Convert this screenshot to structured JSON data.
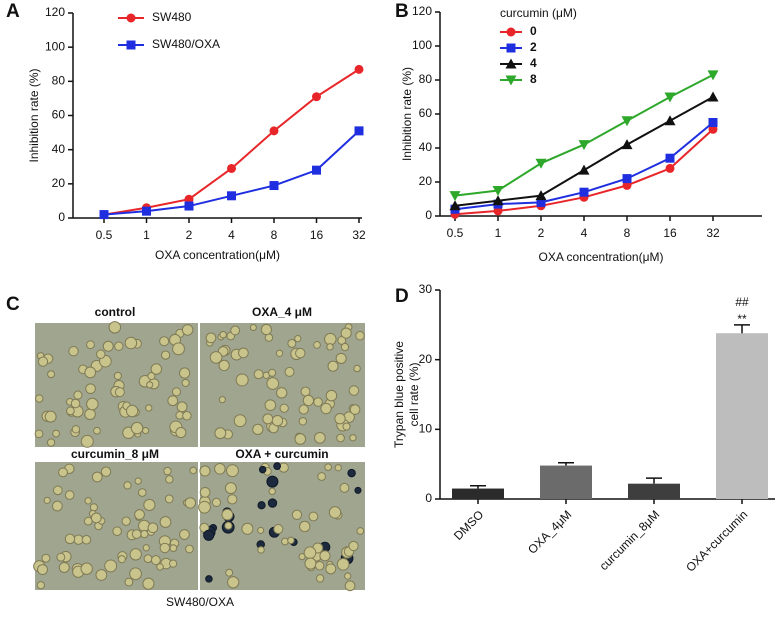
{
  "chart_data": [
    {
      "type": "line",
      "panel_label": "A",
      "xlabel": "OXA concentration(μM)",
      "ylabel": "Inhibition rate (%)",
      "categories": [
        "0.5",
        "1",
        "2",
        "4",
        "8",
        "16",
        "32"
      ],
      "ylim": [
        0,
        120
      ],
      "yticks": [
        0,
        20,
        40,
        60,
        80,
        100,
        120
      ],
      "series": [
        {
          "name": "SW480",
          "color": "#e8262a",
          "marker": "circle",
          "values": [
            2,
            6,
            11,
            29,
            51,
            71,
            87
          ]
        },
        {
          "name": "SW480/OXA",
          "color": "#1f2fe0",
          "marker": "square",
          "values": [
            2,
            4,
            7,
            13,
            19,
            28,
            51
          ]
        }
      ]
    },
    {
      "type": "line",
      "panel_label": "B",
      "xlabel": "OXA concentration(μM)",
      "ylabel": "Inhibition rate (%)",
      "legend_title": "curcumin (μM)",
      "categories": [
        "0.5",
        "1",
        "2",
        "4",
        "8",
        "16",
        "32"
      ],
      "ylim": [
        0,
        120
      ],
      "yticks": [
        0,
        20,
        40,
        60,
        80,
        100,
        120
      ],
      "series": [
        {
          "name": "0",
          "color": "#e8262a",
          "marker": "circle",
          "values": [
            1,
            3,
            6,
            11,
            18,
            28,
            51
          ]
        },
        {
          "name": "2",
          "color": "#1f2fe0",
          "marker": "square",
          "values": [
            4,
            7,
            8,
            14,
            22,
            34,
            55
          ]
        },
        {
          "name": "4",
          "color": "#111111",
          "marker": "triangle",
          "values": [
            6,
            9,
            12,
            27,
            42,
            56,
            70
          ]
        },
        {
          "name": "8",
          "color": "#2ea82a",
          "marker": "triangle-down",
          "values": [
            12,
            15,
            31,
            42,
            56,
            70,
            83
          ]
        }
      ]
    },
    {
      "type": "image",
      "panel_label": "C",
      "panels": [
        "control",
        "OXA_4 μM",
        "curcumin_8 μM",
        "OXA + curcumin"
      ],
      "caption": "SW480/OXA"
    },
    {
      "type": "bar",
      "panel_label": "D",
      "ylabel": [
        "Trypan blue positive",
        "cell rate (%)"
      ],
      "categories": [
        "DMSO",
        "OXA_4μM",
        "curcumin_8μM",
        "OXA+curcumin"
      ],
      "values": [
        1.5,
        4.8,
        2.2,
        23.8
      ],
      "errors": [
        0.4,
        0.4,
        0.8,
        1.2
      ],
      "colors": [
        "#2b2b2b",
        "#6b6b6b",
        "#3e3e3e",
        "#bdbdbd"
      ],
      "annotations": [
        "##",
        "**"
      ],
      "ylim": [
        0,
        30
      ],
      "yticks": [
        0,
        10,
        20,
        30
      ]
    }
  ]
}
